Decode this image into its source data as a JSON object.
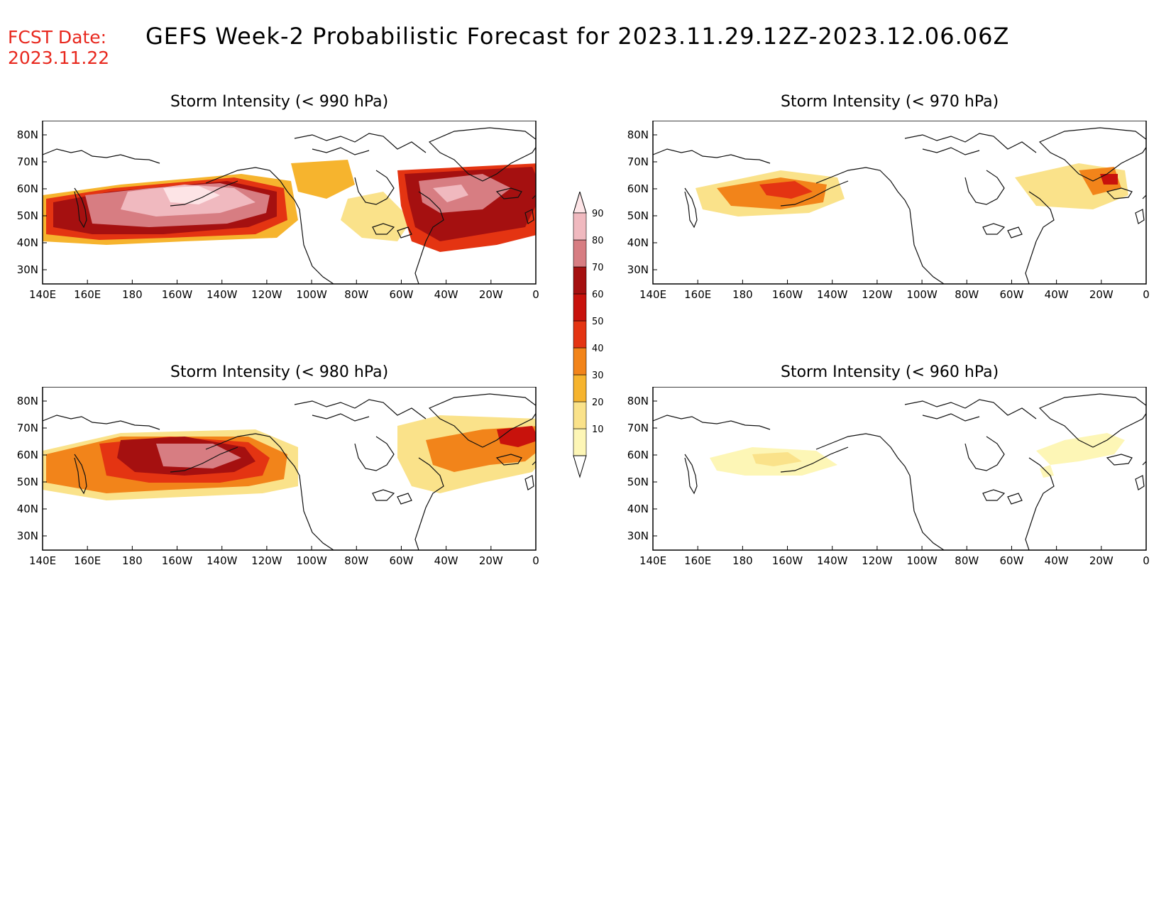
{
  "header": {
    "fcst_label": "FCST Date:",
    "fcst_date": "2023.11.22",
    "title": "GEFS Week-2 Probabilistic Forecast for 2023.11.29.12Z-2023.12.06.06Z"
  },
  "colors": {
    "c10": "#fdf6b6",
    "c20": "#fae28a",
    "c30": "#f6b42e",
    "c40": "#f2841a",
    "c50": "#e43412",
    "c60": "#c8120c",
    "c70": "#a51010",
    "c80": "#d77d82",
    "c90": "#f0b9bf",
    "c95": "#fde4e6"
  },
  "axes": {
    "lon_labels": [
      "140E",
      "160E",
      "180",
      "160W",
      "140W",
      "120W",
      "100W",
      "80W",
      "60W",
      "40W",
      "20W",
      "0"
    ],
    "lat_labels": [
      "80N",
      "70N",
      "60N",
      "50N",
      "40N",
      "30N"
    ]
  },
  "colorbar": {
    "labels": [
      "90",
      "80",
      "70",
      "60",
      "50",
      "40",
      "30",
      "20",
      "10"
    ]
  },
  "panels": [
    {
      "id": "p990",
      "title": "Storm Intensity (< 990 hPa)"
    },
    {
      "id": "p970",
      "title": "Storm Intensity (< 970 hPa)"
    },
    {
      "id": "p980",
      "title": "Storm Intensity (< 980 hPa)"
    },
    {
      "id": "p960",
      "title": "Storm Intensity (< 960 hPa)"
    }
  ]
}
